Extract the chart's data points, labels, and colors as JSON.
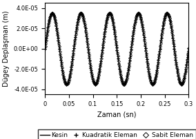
{
  "title": "",
  "xlabel": "Zaman (sn)",
  "ylabel": "Dügey Deplaşman (m)",
  "xlim": [
    0,
    0.3
  ],
  "ylim": [
    -4.5e-05,
    4.5e-05
  ],
  "yticks": [
    -4e-05,
    -2e-05,
    0.0,
    2e-05,
    4e-05
  ],
  "ytick_labels": [
    "-4.0E-05",
    "-2.0E-05",
    "0.0E+00",
    "2.0E-05",
    "4.0E-05"
  ],
  "xticks": [
    0,
    0.05,
    0.1,
    0.15,
    0.2,
    0.25,
    0.3
  ],
  "amplitude": 3.5e-05,
  "frequency": 16.67,
  "n_points": 3000,
  "line_color": "#000000",
  "marker_color": "#000000",
  "background_color": "#ffffff",
  "legend_labels": [
    "Kesin",
    "Kuadratik Eleman",
    "Sabit Eleman"
  ],
  "legend_markers": [
    "line",
    "+",
    "D"
  ],
  "xlabel_fontsize": 7,
  "ylabel_fontsize": 7,
  "tick_fontsize": 6,
  "legend_fontsize": 6.5,
  "figsize": [
    2.84,
    2.02
  ],
  "dpi": 100
}
